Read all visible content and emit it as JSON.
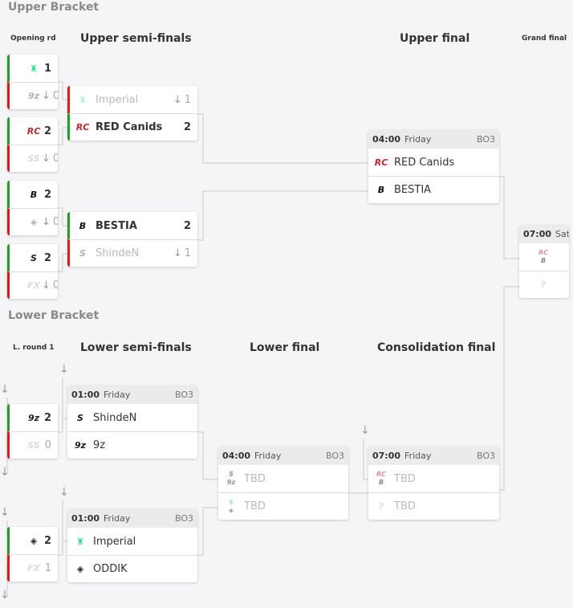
{
  "headings": {
    "upper": "Upper Bracket",
    "lower": "Lower Bracket"
  },
  "rounds": {
    "opening": "Opening rd",
    "upper_semis": "Upper semi-finals",
    "upper_final": "Upper final",
    "grand_final": "Grand final",
    "lround1": "L. round 1",
    "lower_semis": "Lower semi-finals",
    "lower_final": "Lower final",
    "consolidation": "Consolidation final"
  },
  "colors": {
    "win": "#1ea11e",
    "loss": "#e01b1b",
    "imperial": "#2ee88a",
    "red_canids": "#c8242c"
  },
  "matches": [
    {
      "id": "or1",
      "rows": [
        {
          "logo": "imperial",
          "score": "1",
          "result": "w"
        },
        {
          "logo": "9z",
          "score": "0",
          "result": "l",
          "lost": true
        }
      ]
    },
    {
      "id": "or2",
      "rows": [
        {
          "logo": "red-canids",
          "score": "2",
          "result": "w"
        },
        {
          "logo": "swiss",
          "score": "0",
          "result": "l",
          "lost": true
        }
      ]
    },
    {
      "id": "or3",
      "rows": [
        {
          "logo": "bestia",
          "score": "2",
          "result": "w"
        },
        {
          "logo": "oddik",
          "score": "0",
          "result": "l",
          "lost": true
        }
      ]
    },
    {
      "id": "or4",
      "rows": [
        {
          "logo": "shinden",
          "score": "2",
          "result": "w"
        },
        {
          "logo": "fx",
          "score": "0",
          "result": "l",
          "lost": true
        }
      ]
    },
    {
      "id": "us1",
      "rows": [
        {
          "logo": "imperial",
          "name": "Imperial",
          "score": "1",
          "result": "l",
          "lost": true
        },
        {
          "logo": "red-canids",
          "name": "RED Canids",
          "score": "2",
          "result": "w"
        }
      ]
    },
    {
      "id": "us2",
      "rows": [
        {
          "logo": "bestia",
          "name": "BESTIA",
          "score": "2",
          "result": "w"
        },
        {
          "logo": "shinden",
          "name": "ShindeN",
          "score": "1",
          "result": "l",
          "lost": true
        }
      ]
    },
    {
      "id": "uf",
      "time": "04:00",
      "day": "Friday",
      "format": "BO3",
      "rows": [
        {
          "logo": "red-canids",
          "name": "RED Canids"
        },
        {
          "logo": "bestia",
          "name": "BESTIA"
        }
      ]
    },
    {
      "id": "gf",
      "time": "07:00",
      "day": "Sat",
      "rows": [
        {
          "logo": "red-canids+bestia"
        },
        {
          "logo": "unknown"
        }
      ]
    },
    {
      "id": "lr1",
      "rows": [
        {
          "logo": "9z",
          "score": "2",
          "result": "w"
        },
        {
          "logo": "swiss",
          "score": "0",
          "result": "l",
          "plain": true
        }
      ]
    },
    {
      "id": "lr2",
      "rows": [
        {
          "logo": "oddik",
          "score": "2",
          "result": "w"
        },
        {
          "logo": "fx",
          "score": "1",
          "result": "l",
          "plain": true
        }
      ]
    },
    {
      "id": "ls1",
      "time": "01:00",
      "day": "Friday",
      "format": "BO3",
      "rows": [
        {
          "logo": "shinden",
          "name": "ShindeN"
        },
        {
          "logo": "9z",
          "name": "9z"
        }
      ]
    },
    {
      "id": "ls2",
      "time": "01:00",
      "day": "Friday",
      "format": "BO3",
      "rows": [
        {
          "logo": "imperial",
          "name": "Imperial"
        },
        {
          "logo": "oddik",
          "name": "ODDIK"
        }
      ]
    },
    {
      "id": "lf",
      "time": "04:00",
      "day": "Friday",
      "format": "BO3",
      "rows": [
        {
          "logo": "shinden+9z",
          "name": "TBD",
          "tbd": true
        },
        {
          "logo": "imperial+oddik",
          "name": "TBD",
          "tbd": true
        }
      ]
    },
    {
      "id": "cf",
      "time": "07:00",
      "day": "Friday",
      "format": "BO3",
      "rows": [
        {
          "logo": "red-canids+bestia",
          "name": "TBD",
          "tbd": true
        },
        {
          "logo": "unknown",
          "name": "TBD",
          "tbd": true
        }
      ]
    }
  ]
}
